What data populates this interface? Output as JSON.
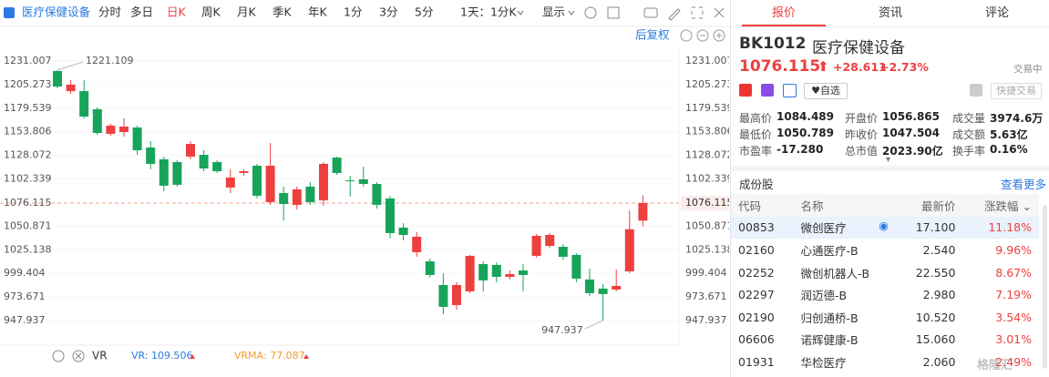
{
  "toolbar": {
    "title": "医疗保健设备",
    "periods": [
      "分时",
      "多日",
      "日K",
      "周K",
      "月K",
      "季K",
      "年K",
      "1分",
      "3分",
      "5分"
    ],
    "active_period": 2,
    "interval": "1天：1分K",
    "display": "显示",
    "adjust": "后复权"
  },
  "chart_data": {
    "type": "candlestick",
    "open": [
      1220.1,
      1198.2,
      1198.2,
      1178.4,
      1151.6,
      1153.5,
      1158.5,
      1136.7,
      1123.8,
      1120.8,
      1126.7,
      1128.7,
      1120.8,
      1093.0,
      1108.9,
      1116.8,
      1077.1,
      1087.0,
      1074.1,
      1094.0,
      1079.1,
      1125.7,
      1100.9,
      1101.9,
      1096.9,
      1081.1,
      1049.3,
      1022.5,
      1012.5,
      986.7,
      964.8,
      979.8,
      1009.5,
      1008.6,
      995.6,
      1002.6,
      1018.5,
      1029.4,
      1028.4,
      1019.5,
      992.7,
      982.8,
      981.8,
      1001.6,
      1056.865
    ],
    "high": [
      1221.109,
      1210.1,
      1210.1,
      1180.4,
      1162.5,
      1168.4,
      1160.5,
      1143.6,
      1126.7,
      1122.8,
      1143.6,
      1133.7,
      1122.8,
      1112.8,
      1112.8,
      1118.8,
      1141.6,
      1094.0,
      1094.0,
      1098.9,
      1120.8,
      1126.7,
      1105.9,
      1115.8,
      1098.9,
      1084.0,
      1054.2,
      1044.3,
      1015.5,
      999.6,
      989.7,
      1019.5,
      1012.5,
      1011.5,
      1002.6,
      1009.5,
      1042.3,
      1043.3,
      1031.4,
      1021.5,
      1004.6,
      987.7,
      1003.6,
      1068.1,
      1084.489
    ],
    "low": [
      1201.2,
      1195.2,
      1168.4,
      1150.6,
      1149.6,
      1148.6,
      1128.7,
      1112.8,
      1089.0,
      1094.0,
      1123.8,
      1110.8,
      1108.9,
      1087.0,
      1105.9,
      1081.1,
      1074.1,
      1057.2,
      1069.1,
      1074.1,
      1073.1,
      1106.9,
      1083.0,
      1094.0,
      1070.1,
      1037.4,
      1035.4,
      1017.5,
      994.6,
      955.0,
      959.9,
      977.8,
      979.8,
      989.7,
      992.7,
      979.8,
      1016.5,
      1027.4,
      1014.5,
      989.7,
      974.8,
      947.937,
      979.8,
      999.6,
      1050.789
    ],
    "close": [
      1203.2,
      1205.2,
      1170.4,
      1152.5,
      1160.5,
      1159.5,
      1133.7,
      1118.8,
      1095.0,
      1096.0,
      1140.6,
      1113.8,
      1110.8,
      1103.9,
      1110.8,
      1084.0,
      1116.8,
      1075.1,
      1091.0,
      1077.1,
      1118.8,
      1108.9,
      1099.9,
      1096.9,
      1074.1,
      1043.3,
      1041.3,
      1039.4,
      997.6,
      962.9,
      986.7,
      1018.5,
      991.7,
      995.6,
      998.6,
      997.6,
      1040.3,
      1041.3,
      1017.5,
      993.7,
      977.8,
      976.8,
      985.7,
      1047.504,
      1076.115
    ],
    "up_color": "#ee3f3f",
    "down_color": "#17a45a",
    "ylim": [
      947.937,
      1231.007
    ],
    "yticks": [
      947.937,
      973.671,
      999.404,
      1025.138,
      1050.871,
      1102.339,
      1128.072,
      1153.806,
      1179.539,
      1205.273,
      1231.007
    ],
    "grid": true
  },
  "indicator": {
    "name": "VR",
    "vr": "VR: 109.506",
    "vrma": "VRMA: 77.087"
  },
  "quote": {
    "tabs": [
      "报价",
      "资讯",
      "评论"
    ],
    "code": "BK1012",
    "change": "+28.611",
    "change_pct": "+2.73%",
    "status": "交易中",
    "watch": "自选",
    "quick_trade": "快捷交易",
    "stats": [
      {
        "label": "最高价"
      },
      {
        "label": "开盘价"
      },
      {
        "label": "成交量",
        "value": "3974.6万"
      },
      {
        "label": "最低价"
      },
      {
        "label": "昨收价"
      },
      {
        "label": "成交额",
        "value": "5.63亿"
      },
      {
        "label": "市盈率",
        "value": "-17.280"
      },
      {
        "label": "总市值",
        "value": "2023.90亿"
      },
      {
        "label": "换手率",
        "value": "0.16%"
      }
    ]
  },
  "constituents": {
    "title": "成份股",
    "more": "查看更多",
    "columns": [
      "代码",
      "名称",
      "最新价",
      "涨跌幅"
    ],
    "rows": [
      [
        "00853",
        "微创医疗",
        "17.100",
        "11.18%"
      ],
      [
        "02160",
        "心通医疗-B",
        "2.540",
        "9.96%"
      ],
      [
        "02252",
        "微创机器人-B",
        "22.550",
        "8.67%"
      ],
      [
        "02297",
        "润迈德-B",
        "2.980",
        "7.19%"
      ],
      [
        "02190",
        "归创通桥-B",
        "10.520",
        "3.54%"
      ],
      [
        "06606",
        "诺辉健康-B",
        "15.060",
        "3.01%"
      ],
      [
        "01931",
        "华检医疗",
        "2.060",
        "2.49%"
      ]
    ]
  },
  "watermark": "格隆汇"
}
